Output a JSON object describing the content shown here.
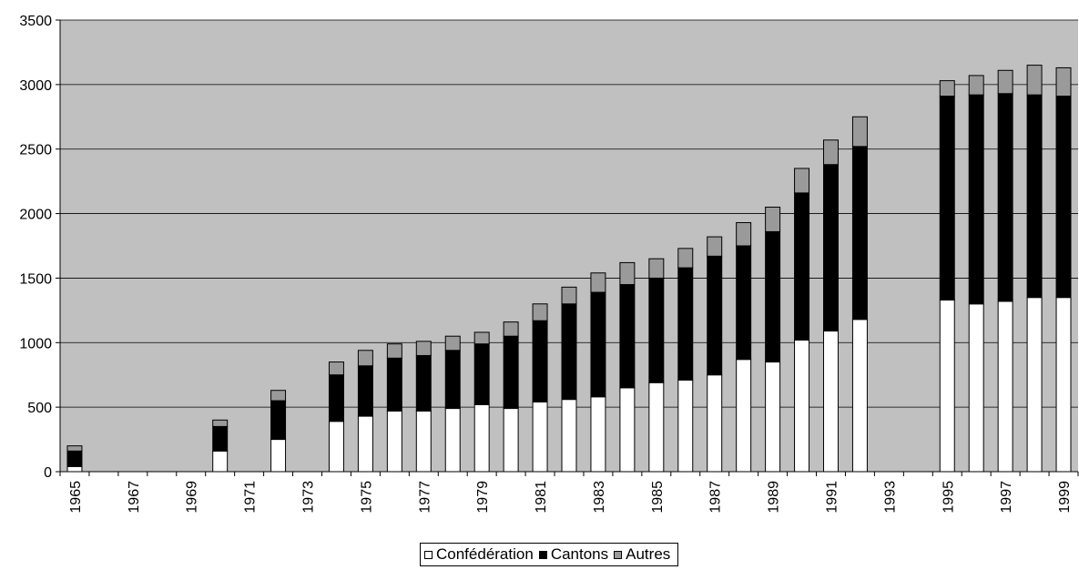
{
  "chart_data": {
    "type": "bar",
    "stacked": true,
    "title": "",
    "xlabel": "",
    "ylabel": "",
    "ylim": [
      0,
      3500
    ],
    "yticks": [
      0,
      500,
      1000,
      1500,
      2000,
      2500,
      3000,
      3500
    ],
    "grid": "horizontal",
    "plot_background": "#c0c0c0",
    "legend_position": "bottom",
    "categories": [
      "1965",
      "1966",
      "1967",
      "1968",
      "1969",
      "1970",
      "1971",
      "1972",
      "1973",
      "1974",
      "1975",
      "1976",
      "1977",
      "1978",
      "1979",
      "1980",
      "1981",
      "1982",
      "1983",
      "1984",
      "1985",
      "1986",
      "1987",
      "1988",
      "1989",
      "1990",
      "1991",
      "1992",
      "1993",
      "1994",
      "1995",
      "1996",
      "1997",
      "1998",
      "1999"
    ],
    "tick_labels": [
      "1965",
      "1967",
      "1969",
      "1971",
      "1973",
      "1975",
      "1977",
      "1979",
      "1981",
      "1983",
      "1985",
      "1987",
      "1989",
      "1991",
      "1993",
      "1995",
      "1997",
      "1999"
    ],
    "series": [
      {
        "name": "Confédération",
        "color": "#ffffff",
        "values": [
          40,
          null,
          null,
          null,
          null,
          160,
          null,
          250,
          null,
          390,
          430,
          470,
          470,
          490,
          520,
          490,
          540,
          560,
          580,
          650,
          690,
          710,
          750,
          870,
          850,
          1020,
          1090,
          1180,
          null,
          null,
          1330,
          1300,
          1320,
          1350,
          1350
        ]
      },
      {
        "name": "Cantons",
        "color": "#000000",
        "values": [
          120,
          null,
          null,
          null,
          null,
          190,
          null,
          300,
          null,
          360,
          390,
          410,
          430,
          450,
          470,
          560,
          630,
          740,
          810,
          800,
          810,
          870,
          920,
          880,
          1010,
          1140,
          1290,
          1340,
          null,
          null,
          1580,
          1620,
          1610,
          1570,
          1560
        ]
      },
      {
        "name": "Autres",
        "color": "#9a9a9a",
        "values": [
          40,
          null,
          null,
          null,
          null,
          50,
          null,
          80,
          null,
          100,
          120,
          110,
          110,
          110,
          90,
          110,
          130,
          130,
          150,
          170,
          150,
          150,
          150,
          180,
          190,
          190,
          190,
          230,
          null,
          null,
          120,
          150,
          180,
          230,
          220
        ]
      }
    ]
  }
}
